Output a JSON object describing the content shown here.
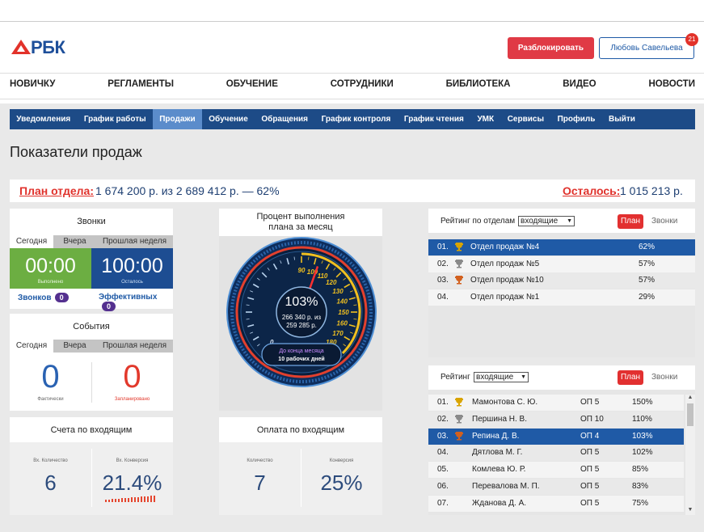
{
  "header": {
    "logo": "РБК",
    "unlock_button": "Разблокировать",
    "user_button": "Любовь Савельева",
    "notification_count": "21"
  },
  "nav": [
    "НОВИЧКУ",
    "РЕГЛАМЕНТЫ",
    "ОБУЧЕНИЕ",
    "СОТРУДНИКИ",
    "БИБЛИОТЕКА",
    "ВИДЕО",
    "НОВОСТИ"
  ],
  "tabs": {
    "items": [
      "Уведомления",
      "График работы",
      "Продажи",
      "Обучение",
      "Обращения",
      "График контроля",
      "График чтения",
      "УМК",
      "Сервисы",
      "Профиль",
      "Выйти"
    ],
    "active": "Продажи"
  },
  "page_title": "Показатели продаж",
  "plan": {
    "label": "План отдела:",
    "summary": "1 674 200 р. из 2 689 412 р. — 62%",
    "remaining_label": "Осталось:",
    "remaining": "1 015 213 р."
  },
  "calls": {
    "title": "Звонки",
    "periods": [
      "Сегодня",
      "Вчера",
      "Прошлая неделя"
    ],
    "done": {
      "value": "00:00",
      "label": "Выполнено"
    },
    "left": {
      "value": "100:00",
      "label": "Осталось"
    },
    "total": {
      "label": "Звонков",
      "count": "0"
    },
    "effective": {
      "label": "Эффективных",
      "count": "0"
    }
  },
  "events": {
    "title": "События",
    "periods": [
      "Сегодня",
      "Вчера",
      "Прошлая неделя"
    ],
    "actual": {
      "value": "0",
      "label": "Фактически"
    },
    "planned": {
      "value": "0",
      "label": "Запланировано"
    }
  },
  "invoices": {
    "title": "Счета по входящим",
    "count": {
      "label": "Вх. Количество",
      "value": "6"
    },
    "conversion": {
      "label": "Вх. Конверсия",
      "value": "21.4%"
    }
  },
  "gauge": {
    "title": "Процент выполнения плана за месяц",
    "scale": [
      "0",
      "90",
      "100",
      "110",
      "120",
      "130",
      "140",
      "150",
      "160",
      "170",
      "180"
    ],
    "percent": "103%",
    "amount": "266 340 р. из",
    "plan": "259 285 р.",
    "countdown_label": "До конца месяца",
    "countdown": "10 рабочих дней"
  },
  "payments": {
    "title": "Оплата по входящим",
    "count": {
      "label": "Количество",
      "value": "7"
    },
    "conversion": {
      "label": "Конверсия",
      "value": "25%"
    }
  },
  "department_rating": {
    "title": "Рейтинг по отделам",
    "filter": "входящие",
    "toggle": [
      "План",
      "Звонки"
    ],
    "rows": [
      {
        "rank": "01.",
        "name": "Отдел продаж №4",
        "value": "62%",
        "selected": true
      },
      {
        "rank": "02.",
        "name": "Отдел продаж №5",
        "value": "57%"
      },
      {
        "rank": "03.",
        "name": "Отдел продаж №10",
        "value": "57%"
      },
      {
        "rank": "04.",
        "name": "Отдел продаж №1",
        "value": "29%"
      }
    ]
  },
  "employee_rating": {
    "title": "Рейтинг",
    "filter": "входящие",
    "toggle": [
      "План",
      "Звонки"
    ],
    "rows": [
      {
        "rank": "01.",
        "name": "Мамонтова С. Ю.",
        "department": "ОП 5",
        "value": "150%"
      },
      {
        "rank": "02.",
        "name": "Першина Н. В.",
        "department": "ОП 10",
        "value": "110%"
      },
      {
        "rank": "03.",
        "name": "Репина Д. В.",
        "department": "ОП 4",
        "value": "103%",
        "selected": true
      },
      {
        "rank": "04.",
        "name": "Дятлова М. Г.",
        "department": "ОП 5",
        "value": "102%"
      },
      {
        "rank": "05.",
        "name": "Комлева Ю. Р.",
        "department": "ОП 5",
        "value": "85%"
      },
      {
        "rank": "06.",
        "name": "Перевалова М. П.",
        "department": "ОП 5",
        "value": "83%"
      },
      {
        "rank": "07.",
        "name": "Жданова Д. А.",
        "department": "ОП 5",
        "value": "75%"
      }
    ]
  }
}
